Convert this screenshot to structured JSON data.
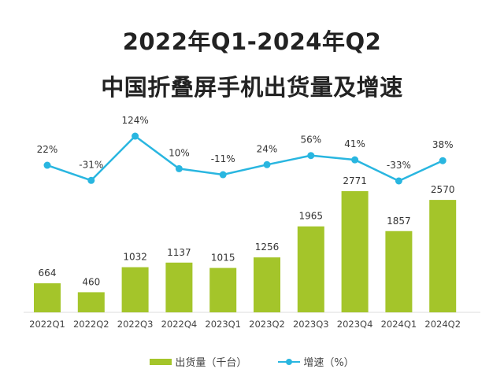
{
  "chart_data": {
    "type": "bar+line",
    "title": [
      "2022年Q1-2024年Q2",
      "中国折叠屏手机出货量及增速"
    ],
    "categories": [
      "2022Q1",
      "2022Q2",
      "2022Q3",
      "2022Q4",
      "2023Q1",
      "2023Q2",
      "2023Q3",
      "2023Q4",
      "2024Q1",
      "2024Q2"
    ],
    "series": [
      {
        "name": "出货量（千台）",
        "type": "bar",
        "color": "#a4c52a",
        "values": [
          664,
          460,
          1032,
          1137,
          1015,
          1256,
          1965,
          2771,
          1857,
          2570
        ]
      },
      {
        "name": "增速（%）",
        "type": "line",
        "color": "#29b6e0",
        "values": [
          22,
          -31,
          124,
          10,
          -11,
          24,
          56,
          41,
          -33,
          38
        ],
        "labels": [
          "22%",
          "-31%",
          "124%",
          "10%",
          "-11%",
          "24%",
          "56%",
          "41%",
          "-33%",
          "38%"
        ]
      }
    ],
    "grid": false,
    "legend": "bottom"
  }
}
